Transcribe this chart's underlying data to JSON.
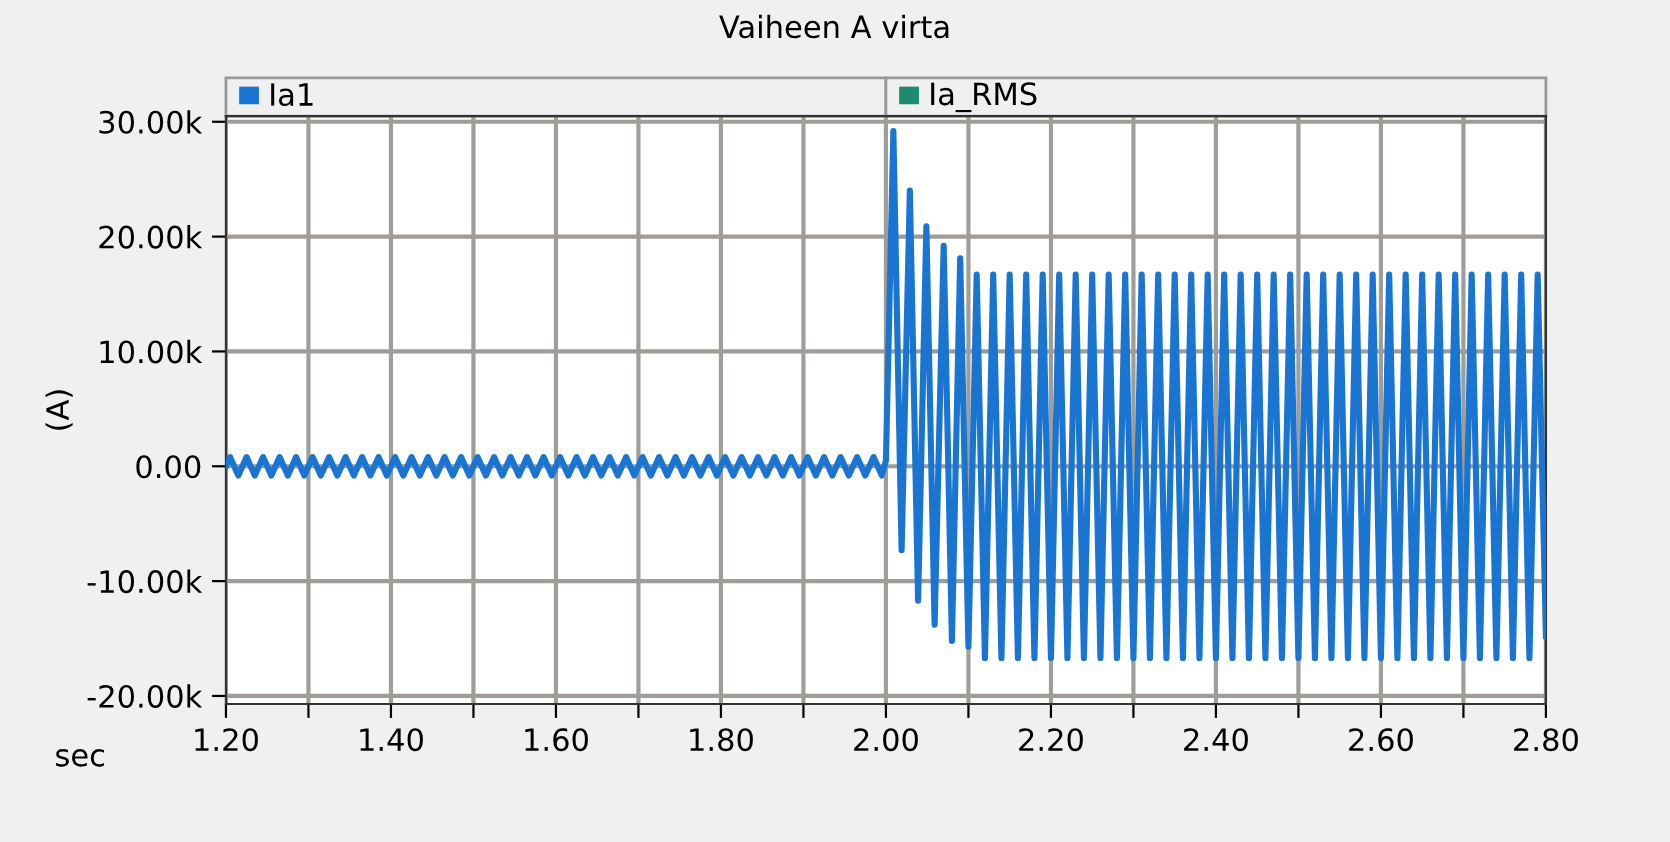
{
  "chart_data": {
    "type": "line",
    "title": "Vaiheen A virta",
    "xlabel": "sec",
    "ylabel": "(A)",
    "xlim": [
      1.2,
      2.8
    ],
    "ylim": [
      -20700,
      30500
    ],
    "xticks": [
      {
        "value": 1.2,
        "label": "1.20"
      },
      {
        "value": 1.3,
        "label": null
      },
      {
        "value": 1.4,
        "label": "1.40"
      },
      {
        "value": 1.5,
        "label": null
      },
      {
        "value": 1.6,
        "label": "1.60"
      },
      {
        "value": 1.7,
        "label": null
      },
      {
        "value": 1.8,
        "label": "1.80"
      },
      {
        "value": 1.9,
        "label": null
      },
      {
        "value": 2.0,
        "label": "2.00"
      },
      {
        "value": 2.1,
        "label": null
      },
      {
        "value": 2.2,
        "label": "2.20"
      },
      {
        "value": 2.3,
        "label": null
      },
      {
        "value": 2.4,
        "label": "2.40"
      },
      {
        "value": 2.5,
        "label": null
      },
      {
        "value": 2.6,
        "label": "2.60"
      },
      {
        "value": 2.7,
        "label": null
      },
      {
        "value": 2.8,
        "label": "2.80"
      }
    ],
    "yticks": [
      {
        "value": 30000,
        "label": "30.00k"
      },
      {
        "value": 20000,
        "label": "20.00k"
      },
      {
        "value": 10000,
        "label": "10.00k"
      },
      {
        "value": 0,
        "label": "0.00"
      },
      {
        "value": -10000,
        "label": "-10.00k"
      },
      {
        "value": -20000,
        "label": "-20.00k"
      }
    ],
    "grid": true,
    "legend": "top",
    "marker": "none",
    "line_style": "solid",
    "series": [
      {
        "name": "Ia1",
        "color": "#1a75d2",
        "x": [
          1.2,
          1.205,
          1.215,
          1.225,
          1.235,
          1.245,
          1.255,
          1.265,
          1.275,
          1.285,
          1.295,
          1.305,
          1.315,
          1.325,
          1.335,
          1.345,
          1.355,
          1.365,
          1.375,
          1.385,
          1.395,
          1.405,
          1.415,
          1.425,
          1.435,
          1.445,
          1.455,
          1.465,
          1.475,
          1.485,
          1.495,
          1.505,
          1.515,
          1.525,
          1.535,
          1.545,
          1.555,
          1.565,
          1.575,
          1.585,
          1.595,
          1.605,
          1.615,
          1.625,
          1.635,
          1.645,
          1.655,
          1.665,
          1.675,
          1.685,
          1.695,
          1.705,
          1.715,
          1.725,
          1.735,
          1.745,
          1.755,
          1.765,
          1.775,
          1.785,
          1.795,
          1.805,
          1.815,
          1.825,
          1.835,
          1.845,
          1.855,
          1.865,
          1.875,
          1.885,
          1.895,
          1.905,
          1.915,
          1.925,
          1.935,
          1.945,
          1.955,
          1.965,
          1.975,
          1.985,
          1.995,
          2.0,
          2.009,
          2.019,
          2.029,
          2.039,
          2.049,
          2.059,
          2.07,
          2.08,
          2.09,
          2.1,
          2.11,
          2.12,
          2.13,
          2.14,
          2.15,
          2.16,
          2.17,
          2.18,
          2.19,
          2.2,
          2.21,
          2.22,
          2.23,
          2.24,
          2.25,
          2.26,
          2.27,
          2.28,
          2.29,
          2.3,
          2.31,
          2.32,
          2.33,
          2.34,
          2.35,
          2.36,
          2.37,
          2.38,
          2.39,
          2.4,
          2.41,
          2.42,
          2.43,
          2.44,
          2.45,
          2.46,
          2.47,
          2.48,
          2.49,
          2.5,
          2.51,
          2.52,
          2.53,
          2.54,
          2.55,
          2.56,
          2.57,
          2.58,
          2.59,
          2.6,
          2.61,
          2.62,
          2.63,
          2.64,
          2.65,
          2.66,
          2.67,
          2.68,
          2.69,
          2.7,
          2.71,
          2.72,
          2.73,
          2.74,
          2.75,
          2.76,
          2.77,
          2.78,
          2.79,
          2.8
        ],
        "values": [
          0,
          800,
          -800,
          800,
          -800,
          800,
          -800,
          800,
          -800,
          800,
          -800,
          800,
          -800,
          800,
          -800,
          800,
          -800,
          800,
          -800,
          800,
          -800,
          800,
          -800,
          800,
          -800,
          800,
          -800,
          800,
          -800,
          800,
          -800,
          800,
          -800,
          800,
          -800,
          800,
          -800,
          800,
          -800,
          800,
          -800,
          800,
          -800,
          800,
          -800,
          800,
          -800,
          800,
          -800,
          800,
          -800,
          800,
          -800,
          800,
          -800,
          800,
          -800,
          800,
          -800,
          800,
          -800,
          800,
          -800,
          800,
          -800,
          800,
          -800,
          800,
          -800,
          800,
          -800,
          800,
          -800,
          800,
          -800,
          800,
          -800,
          800,
          -800,
          800,
          -800,
          500,
          29200,
          -7300,
          24000,
          -11700,
          20900,
          -13800,
          19200,
          -15200,
          18100,
          -15700,
          16700,
          -16700,
          16700,
          -16700,
          16700,
          -16700,
          16700,
          -16700,
          16700,
          -16700,
          16700,
          -16700,
          16700,
          -16700,
          16700,
          -16700,
          16700,
          -16700,
          16700,
          -16700,
          16700,
          -16700,
          16700,
          -16700,
          16700,
          -16700,
          16700,
          -16700,
          16700,
          -16700,
          16700,
          -16700,
          16700,
          -16700,
          16700,
          -16700,
          16700,
          -16700,
          16700,
          -16700,
          16700,
          -16700,
          16700,
          -16700,
          16700,
          -16700,
          16700,
          -16700,
          16700,
          -16700,
          16700,
          -16700,
          16700,
          -16700,
          16700,
          -16700,
          16700,
          -16700,
          16700,
          -16700,
          16700,
          -16700,
          16700,
          -16700,
          16700,
          -16700,
          16700,
          -16700,
          16700,
          -14800
        ]
      },
      {
        "name": "Ia_RMS",
        "color": "#1e8a70"
      }
    ]
  }
}
